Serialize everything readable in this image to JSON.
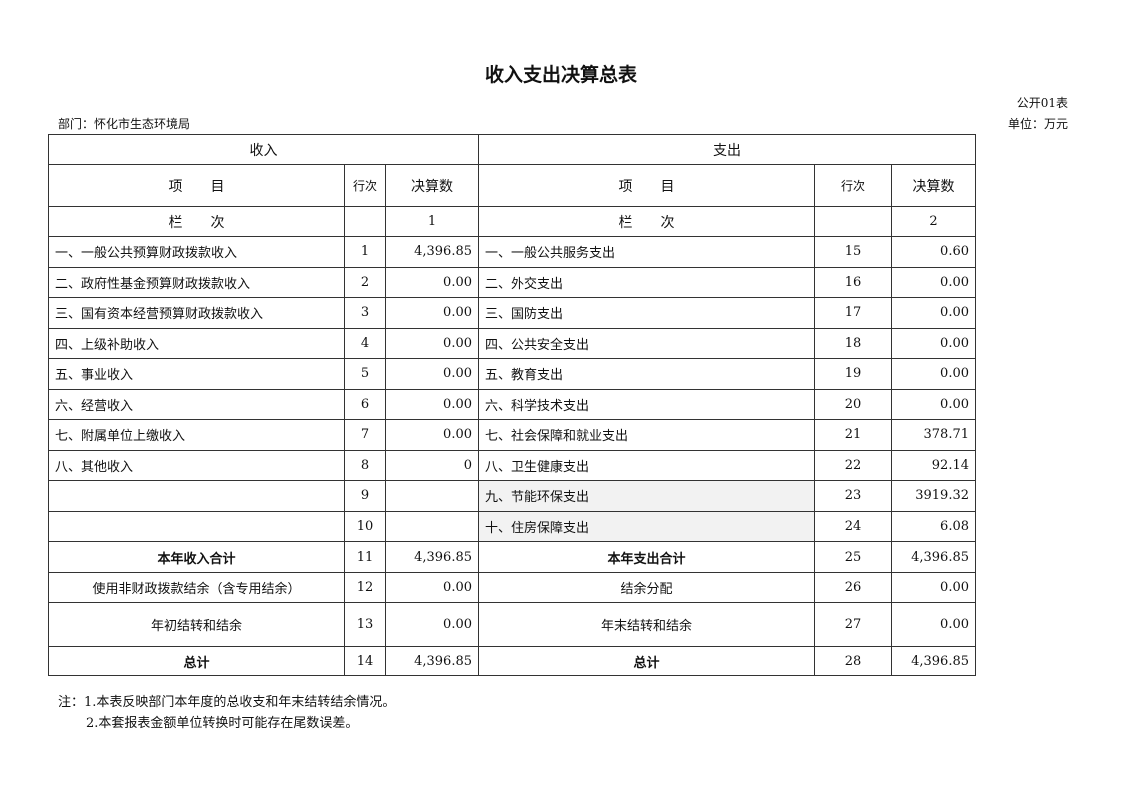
{
  "title": "收入支出决算总表",
  "form_code": "公开01表",
  "department": "部门：怀化市生态环境局",
  "unit": "单位：万元",
  "headers": {
    "income": "收入",
    "expense": "支出",
    "item": "项　　目",
    "row_no": "行次",
    "amount": "决算数",
    "column": "栏　　次",
    "income_col": "1",
    "expense_col": "2"
  },
  "rows": [
    {
      "in_item": "一、一般公共预算财政拨款收入",
      "in_no": "1",
      "in_amt": "4,396.85",
      "ex_item": "一、一般公共服务支出",
      "ex_no": "15",
      "ex_amt": "0.60"
    },
    {
      "in_item": "二、政府性基金预算财政拨款收入",
      "in_no": "2",
      "in_amt": "0.00",
      "ex_item": "二、外交支出",
      "ex_no": "16",
      "ex_amt": "0.00"
    },
    {
      "in_item": "三、国有资本经营预算财政拨款收入",
      "in_no": "3",
      "in_amt": "0.00",
      "ex_item": "三、国防支出",
      "ex_no": "17",
      "ex_amt": "0.00"
    },
    {
      "in_item": "四、上级补助收入",
      "in_no": "4",
      "in_amt": "0.00",
      "ex_item": "四、公共安全支出",
      "ex_no": "18",
      "ex_amt": "0.00"
    },
    {
      "in_item": "五、事业收入",
      "in_no": "5",
      "in_amt": "0.00",
      "ex_item": "五、教育支出",
      "ex_no": "19",
      "ex_amt": "0.00"
    },
    {
      "in_item": "六、经营收入",
      "in_no": "6",
      "in_amt": "0.00",
      "ex_item": "六、科学技术支出",
      "ex_no": "20",
      "ex_amt": "0.00"
    },
    {
      "in_item": "七、附属单位上缴收入",
      "in_no": "7",
      "in_amt": "0.00",
      "ex_item": "七、社会保障和就业支出",
      "ex_no": "21",
      "ex_amt": "378.71"
    },
    {
      "in_item": "八、其他收入",
      "in_no": "8",
      "in_amt": "0",
      "ex_item": "八、卫生健康支出",
      "ex_no": "22",
      "ex_amt": "92.14"
    },
    {
      "in_item": "",
      "in_no": "9",
      "in_amt": "",
      "ex_item": "九、节能环保支出",
      "ex_no": "23",
      "ex_amt": "3919.32"
    },
    {
      "in_item": "",
      "in_no": "10",
      "in_amt": "",
      "ex_item": "十、住房保障支出",
      "ex_no": "24",
      "ex_amt": "6.08"
    }
  ],
  "summary": [
    {
      "in_item": "本年收入合计",
      "in_no": "11",
      "in_amt": "4,396.85",
      "ex_item": "本年支出合计",
      "ex_no": "25",
      "ex_amt": "4,396.85"
    },
    {
      "in_item": "使用非财政拨款结余（含专用结余）",
      "in_no": "12",
      "in_amt": "0.00",
      "ex_item": "结余分配",
      "ex_no": "26",
      "ex_amt": "0.00"
    },
    {
      "in_item": "年初结转和结余",
      "in_no": "13",
      "in_amt": "0.00",
      "ex_item": "年末结转和结余",
      "ex_no": "27",
      "ex_amt": "0.00"
    },
    {
      "in_item": "总计",
      "in_no": "14",
      "in_amt": "4,396.85",
      "ex_item": "总计",
      "ex_no": "28",
      "ex_amt": "4,396.85"
    }
  ],
  "notes": [
    "注：1.本表反映部门本年度的总收支和年末结转结余情况。",
    "2.本套报表金额单位转换时可能存在尾数误差。"
  ]
}
